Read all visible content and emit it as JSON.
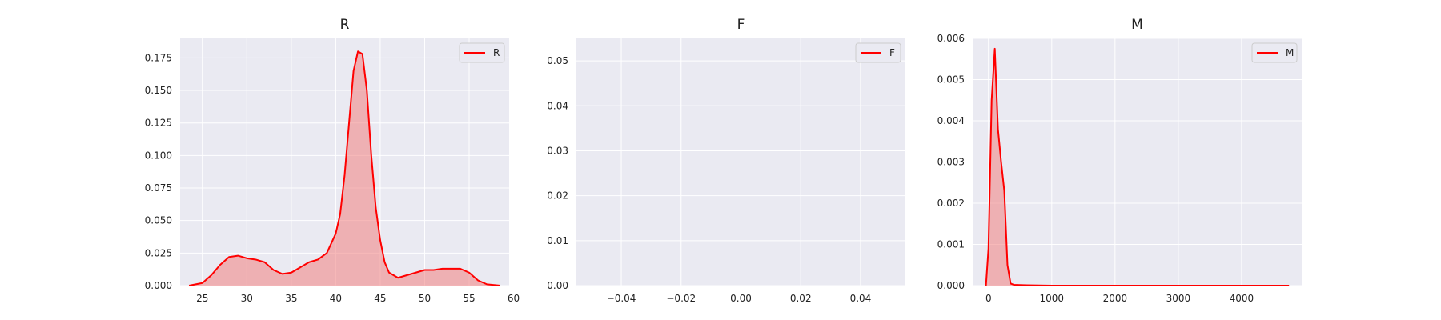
{
  "chart_data": [
    {
      "type": "area",
      "title": "R",
      "xlabel": "",
      "ylabel": "",
      "xlim": [
        22.5,
        59.5
      ],
      "ylim": [
        0,
        0.19
      ],
      "xticks": [
        25,
        30,
        35,
        40,
        45,
        50,
        55,
        60
      ],
      "yticks": [
        0,
        0.025,
        0.05,
        0.075,
        0.1,
        0.125,
        0.15,
        0.175
      ],
      "xtick_labels": [
        "25",
        "30",
        "35",
        "40",
        "45",
        "50",
        "55",
        "60"
      ],
      "ytick_labels": [
        "0.000",
        "0.025",
        "0.050",
        "0.075",
        "0.100",
        "0.125",
        "0.150",
        "0.175"
      ],
      "grid": true,
      "legend_position": "top-right",
      "series": [
        {
          "name": "R",
          "color": "#ff0000",
          "fill_color": "#f08080",
          "x": [
            23.5,
            25,
            26,
            27,
            28,
            29,
            30,
            31,
            32,
            33,
            34,
            35,
            36,
            37,
            38,
            39,
            40,
            40.5,
            41,
            41.5,
            42,
            42.5,
            43,
            43.5,
            44,
            44.5,
            45,
            45.5,
            46,
            47,
            48,
            49,
            50,
            51,
            52,
            53,
            54,
            55,
            56,
            57,
            58.5
          ],
          "y": [
            0,
            0.002,
            0.008,
            0.016,
            0.022,
            0.023,
            0.021,
            0.02,
            0.018,
            0.012,
            0.009,
            0.01,
            0.014,
            0.018,
            0.02,
            0.025,
            0.04,
            0.055,
            0.085,
            0.125,
            0.165,
            0.18,
            0.178,
            0.15,
            0.1,
            0.06,
            0.035,
            0.018,
            0.01,
            0.006,
            0.008,
            0.01,
            0.012,
            0.012,
            0.013,
            0.013,
            0.013,
            0.01,
            0.004,
            0.001,
            0
          ]
        }
      ]
    },
    {
      "type": "area",
      "title": "F",
      "xlabel": "",
      "ylabel": "",
      "xlim": [
        -0.055,
        0.055
      ],
      "ylim": [
        0,
        0.055
      ],
      "xticks": [
        -0.04,
        -0.02,
        0,
        0.02,
        0.04
      ],
      "yticks": [
        0,
        0.01,
        0.02,
        0.03,
        0.04,
        0.05
      ],
      "xtick_labels": [
        "−0.04",
        "−0.02",
        "0.00",
        "0.02",
        "0.04"
      ],
      "ytick_labels": [
        "0.00",
        "0.01",
        "0.02",
        "0.03",
        "0.04",
        "0.05"
      ],
      "grid": true,
      "legend_position": "top-right",
      "series": [
        {
          "name": "F",
          "color": "#ff0000",
          "fill_color": "#f08080",
          "x": [],
          "y": []
        }
      ]
    },
    {
      "type": "area",
      "title": "M",
      "xlabel": "",
      "ylabel": "",
      "xlim": [
        -250,
        4950
      ],
      "ylim": [
        0,
        0.006
      ],
      "xticks": [
        0,
        1000,
        2000,
        3000,
        4000
      ],
      "yticks": [
        0,
        0.001,
        0.002,
        0.003,
        0.004,
        0.005,
        0.006
      ],
      "xtick_labels": [
        "0",
        "1000",
        "2000",
        "3000",
        "4000"
      ],
      "ytick_labels": [
        "0.000",
        "0.001",
        "0.002",
        "0.003",
        "0.004",
        "0.005",
        "0.006"
      ],
      "grid": true,
      "legend_position": "top-right",
      "series": [
        {
          "name": "M",
          "color": "#ff0000",
          "fill_color": "#f08080",
          "x": [
            -40,
            0,
            50,
            100,
            150,
            200,
            250,
            300,
            350,
            400,
            600,
            1000,
            2000,
            3000,
            4000,
            4750
          ],
          "y": [
            0,
            0.0009,
            0.0045,
            0.00575,
            0.0038,
            0.003,
            0.0023,
            0.0005,
            5e-05,
            2e-05,
            1e-05,
            0,
            0,
            0,
            0,
            0
          ]
        }
      ]
    }
  ]
}
